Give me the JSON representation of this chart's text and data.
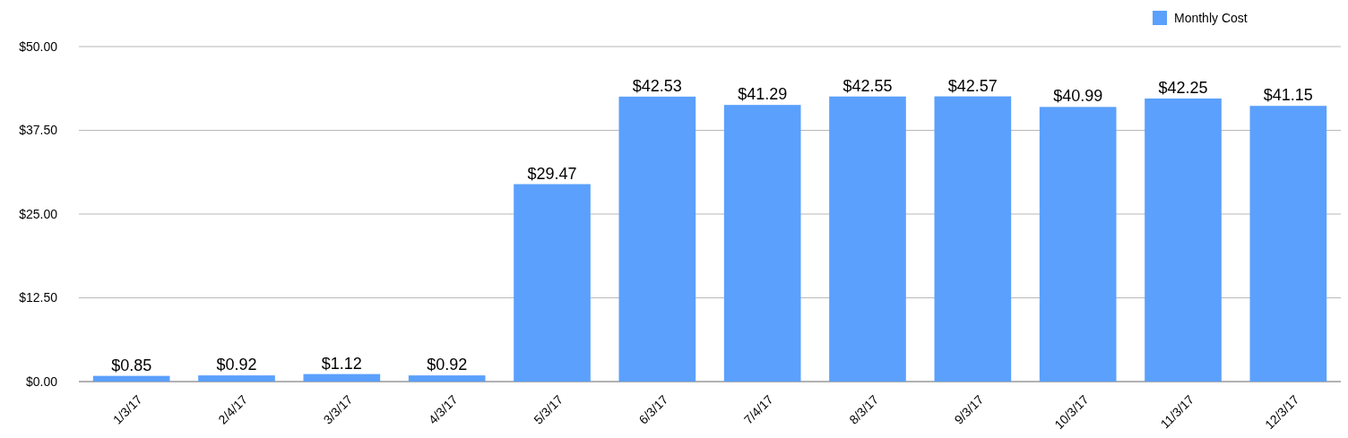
{
  "chart_data": {
    "type": "bar",
    "categories": [
      "1/3/17",
      "2/4/17",
      "3/3/17",
      "4/3/17",
      "5/3/17",
      "6/3/17",
      "7/4/17",
      "8/3/17",
      "9/3/17",
      "10/3/17",
      "11/3/17",
      "12/3/17"
    ],
    "series": [
      {
        "name": "Monthly Cost",
        "color": "#5ba0fd",
        "values": [
          0.85,
          0.92,
          1.12,
          0.92,
          29.47,
          42.53,
          41.29,
          42.55,
          42.57,
          40.99,
          42.25,
          41.15
        ],
        "value_labels": [
          "$0.85",
          "$0.92",
          "$1.12",
          "$0.92",
          "$29.47",
          "$42.53",
          "$41.29",
          "$42.55",
          "$42.57",
          "$40.99",
          "$42.25",
          "$41.15"
        ]
      }
    ],
    "ylim": [
      0,
      50
    ],
    "yticks": [
      {
        "value": 0,
        "label": "$0.00"
      },
      {
        "value": 12.5,
        "label": "$12.50"
      },
      {
        "value": 25,
        "label": "$25.00"
      },
      {
        "value": 37.5,
        "label": "$37.50"
      },
      {
        "value": 50,
        "label": "$50.00"
      }
    ],
    "grid": "y",
    "legend": "top right"
  }
}
